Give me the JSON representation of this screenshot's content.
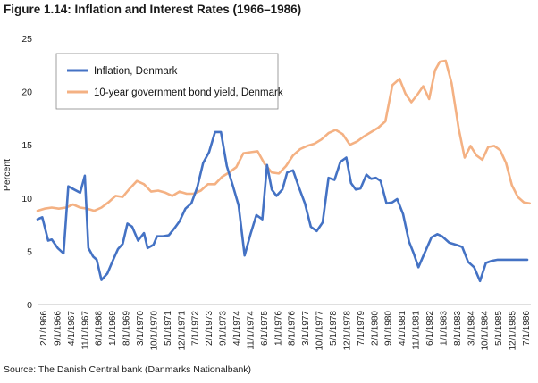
{
  "title": "Figure 1.14: Inflation and Interest Rates (1966–1986)",
  "source": "Source: The Danish Central bank (Danmarks Nationalbank)",
  "chart_data": {
    "type": "line",
    "title": "Figure 1.14: Inflation and Interest Rates (1966–1986)",
    "xlabel": "",
    "ylabel": "Percent",
    "ylim": [
      0,
      25
    ],
    "yticks": [
      0,
      5,
      10,
      15,
      20,
      25
    ],
    "grid": false,
    "legend_position": "top-left",
    "x_tick_labels": [
      "2/1/1966",
      "9/1/1966",
      "4/1/1967",
      "11/1/1967",
      "6/1/1968",
      "1/1/1969",
      "8/1/1969",
      "3/1/1970",
      "10/1/1970",
      "5/1/1971",
      "12/1/1971",
      "7/1/1972",
      "2/1/1973",
      "9/1/1973",
      "4/1/1974",
      "11/1/1974",
      "6/1/1975",
      "1/1/1976",
      "8/1/1976",
      "3/1/1977",
      "10/1/1977",
      "5/1/1978",
      "12/1/1978",
      "7/1/1979",
      "2/1/1980",
      "9/1/1980",
      "4/1/1981",
      "11/1/1981",
      "6/1/1982",
      "1/1/1983",
      "8/1/1983",
      "3/1/1984",
      "10/1/1984",
      "5/1/1985",
      "12/1/1985",
      "7/1/1986"
    ],
    "series": [
      {
        "name": "Inflation, Denmark",
        "color": "#4472c4",
        "x": [
          1966.0,
          1966.2,
          1966.45,
          1966.6,
          1966.85,
          1967.1,
          1967.3,
          1967.55,
          1967.8,
          1968.0,
          1968.15,
          1968.35,
          1968.5,
          1968.7,
          1968.95,
          1969.2,
          1969.4,
          1969.6,
          1969.8,
          1970.0,
          1970.25,
          1970.5,
          1970.65,
          1970.9,
          1971.05,
          1971.3,
          1971.55,
          1971.8,
          1972.0,
          1972.25,
          1972.5,
          1972.75,
          1973.0,
          1973.25,
          1973.5,
          1973.75,
          1974.0,
          1974.25,
          1974.5,
          1974.75,
          1975.0,
          1975.25,
          1975.5,
          1975.7,
          1975.9,
          1976.1,
          1976.35,
          1976.55,
          1976.8,
          1977.05,
          1977.3,
          1977.55,
          1977.8,
          1978.05,
          1978.3,
          1978.55,
          1978.8,
          1979.05,
          1979.25,
          1979.45,
          1979.65,
          1979.9,
          1980.1,
          1980.3,
          1980.5,
          1980.75,
          1981.0,
          1981.2,
          1981.45,
          1981.7,
          1981.9,
          1982.1,
          1982.35,
          1982.65,
          1982.9,
          1983.1,
          1983.4,
          1983.7,
          1983.95,
          1984.2,
          1984.45,
          1984.7,
          1984.95,
          1985.2,
          1985.45,
          1985.7,
          1985.95,
          1986.2,
          1986.45,
          1986.7
        ],
        "values": [
          8.0,
          8.2,
          6.0,
          6.1,
          5.3,
          4.8,
          11.1,
          10.8,
          10.5,
          12.1,
          5.3,
          4.5,
          4.2,
          2.3,
          2.9,
          4.2,
          5.2,
          5.7,
          7.6,
          7.3,
          6.0,
          6.7,
          5.3,
          5.6,
          6.4,
          6.4,
          6.5,
          7.2,
          7.8,
          9.0,
          9.5,
          11.0,
          13.3,
          14.3,
          16.2,
          16.2,
          13.0,
          11.2,
          9.3,
          4.6,
          6.6,
          8.4,
          8.0,
          13.1,
          10.8,
          10.2,
          10.8,
          12.4,
          12.6,
          11.0,
          9.5,
          7.3,
          6.9,
          7.7,
          11.9,
          11.7,
          13.4,
          13.8,
          11.4,
          10.8,
          10.9,
          12.2,
          11.8,
          11.9,
          11.6,
          9.5,
          9.6,
          9.9,
          8.5,
          5.9,
          4.8,
          3.5,
          4.8,
          6.3,
          6.6,
          6.4,
          5.8,
          5.6,
          5.4,
          4.0,
          3.5,
          2.2,
          3.9,
          4.1,
          4.2,
          4.2,
          4.2,
          4.2,
          4.2,
          4.2
        ]
      },
      {
        "name": "10-year government bond yield, Denmark",
        "color": "#f4b183",
        "x": [
          1966.0,
          1966.3,
          1966.6,
          1966.9,
          1967.2,
          1967.5,
          1967.8,
          1968.1,
          1968.4,
          1968.7,
          1969.0,
          1969.3,
          1969.6,
          1969.9,
          1970.2,
          1970.5,
          1970.8,
          1971.1,
          1971.4,
          1971.7,
          1972.0,
          1972.3,
          1972.6,
          1972.9,
          1973.2,
          1973.5,
          1973.8,
          1974.1,
          1974.4,
          1974.7,
          1975.0,
          1975.3,
          1975.6,
          1975.9,
          1976.2,
          1976.5,
          1976.8,
          1977.1,
          1977.4,
          1977.7,
          1978.0,
          1978.3,
          1978.6,
          1978.9,
          1979.2,
          1979.5,
          1979.8,
          1980.1,
          1980.4,
          1980.7,
          1981.0,
          1981.3,
          1981.55,
          1981.8,
          1982.05,
          1982.3,
          1982.55,
          1982.8,
          1983.0,
          1983.25,
          1983.5,
          1983.8,
          1984.05,
          1984.3,
          1984.55,
          1984.8,
          1985.05,
          1985.3,
          1985.55,
          1985.8,
          1986.05,
          1986.3,
          1986.55,
          1986.8
        ],
        "values": [
          8.8,
          9.0,
          9.1,
          9.0,
          9.1,
          9.4,
          9.1,
          9.0,
          8.8,
          9.1,
          9.6,
          10.2,
          10.1,
          10.9,
          11.6,
          11.3,
          10.6,
          10.7,
          10.5,
          10.2,
          10.6,
          10.4,
          10.4,
          10.7,
          11.3,
          11.3,
          12.0,
          12.4,
          12.9,
          14.2,
          14.3,
          14.4,
          13.2,
          12.4,
          12.3,
          13.0,
          14.0,
          14.6,
          14.9,
          15.1,
          15.5,
          16.1,
          16.4,
          16.0,
          15.0,
          15.3,
          15.8,
          16.2,
          16.6,
          17.2,
          20.6,
          21.2,
          19.8,
          19.0,
          19.7,
          20.5,
          19.3,
          22.0,
          22.8,
          22.9,
          20.8,
          16.5,
          13.8,
          14.9,
          14.0,
          13.6,
          14.8,
          14.9,
          14.5,
          13.3,
          11.2,
          10.1,
          9.6,
          9.5
        ]
      }
    ],
    "legend": [
      "Inflation, Denmark",
      "10-year government bond yield, Denmark"
    ]
  }
}
